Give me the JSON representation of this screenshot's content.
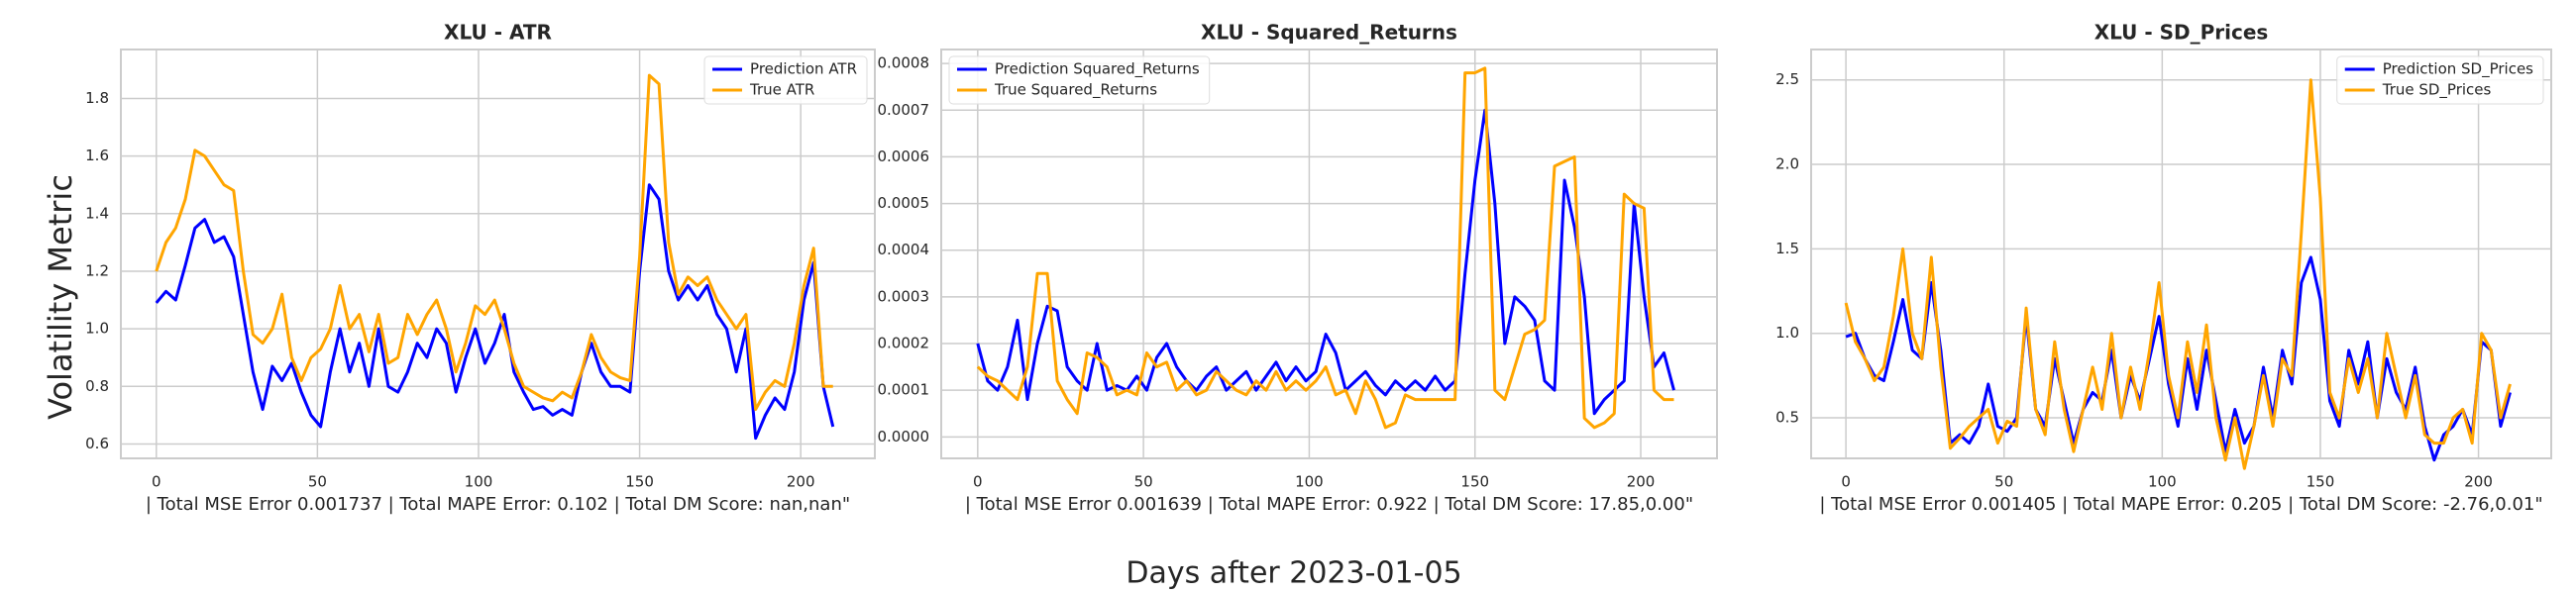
{
  "supylabel": "Volatility Metric",
  "supxlabel": "Days after 2023-01-05",
  "chart_data": [
    {
      "type": "line",
      "title": "XLU - ATR",
      "xlabel": "| Total MSE Error 0.001737 | Total MAPE Error: 0.102 | Total DM Score: nan,nan\"",
      "x": [
        0,
        3,
        6,
        9,
        12,
        15,
        18,
        21,
        24,
        27,
        30,
        33,
        36,
        39,
        42,
        45,
        48,
        51,
        54,
        57,
        60,
        63,
        66,
        69,
        72,
        75,
        78,
        81,
        84,
        87,
        90,
        93,
        96,
        99,
        102,
        105,
        108,
        111,
        114,
        117,
        120,
        123,
        126,
        129,
        132,
        135,
        138,
        141,
        144,
        147,
        150,
        153,
        156,
        159,
        162,
        165,
        168,
        171,
        174,
        177,
        180,
        183,
        186,
        189,
        192,
        195,
        198,
        201,
        204,
        207,
        210
      ],
      "series": [
        {
          "name": "Prediction ATR",
          "color": "#0000ff",
          "values": [
            1.09,
            1.13,
            1.1,
            1.22,
            1.35,
            1.38,
            1.3,
            1.32,
            1.25,
            1.05,
            0.85,
            0.72,
            0.87,
            0.82,
            0.88,
            0.78,
            0.7,
            0.66,
            0.85,
            1.0,
            0.85,
            0.95,
            0.8,
            1.0,
            0.8,
            0.78,
            0.85,
            0.95,
            0.9,
            1.0,
            0.95,
            0.78,
            0.9,
            1.0,
            0.88,
            0.95,
            1.05,
            0.85,
            0.78,
            0.72,
            0.73,
            0.7,
            0.72,
            0.7,
            0.85,
            0.95,
            0.85,
            0.8,
            0.8,
            0.78,
            1.2,
            1.5,
            1.45,
            1.2,
            1.1,
            1.15,
            1.1,
            1.15,
            1.05,
            1.0,
            0.85,
            1.0,
            0.62,
            0.7,
            0.76,
            0.72,
            0.85,
            1.1,
            1.23,
            0.8,
            0.66
          ]
        },
        {
          "name": "True ATR",
          "color": "#ffa500",
          "values": [
            1.2,
            1.3,
            1.35,
            1.45,
            1.62,
            1.6,
            1.55,
            1.5,
            1.48,
            1.2,
            0.98,
            0.95,
            1.0,
            1.12,
            0.9,
            0.82,
            0.9,
            0.93,
            1.0,
            1.15,
            1.0,
            1.05,
            0.92,
            1.05,
            0.88,
            0.9,
            1.05,
            0.98,
            1.05,
            1.1,
            1.0,
            0.85,
            0.95,
            1.08,
            1.05,
            1.1,
            1.0,
            0.88,
            0.8,
            0.78,
            0.76,
            0.75,
            0.78,
            0.76,
            0.85,
            0.98,
            0.9,
            0.85,
            0.83,
            0.82,
            1.25,
            1.88,
            1.85,
            1.3,
            1.12,
            1.18,
            1.15,
            1.18,
            1.1,
            1.05,
            1.0,
            1.05,
            0.72,
            0.78,
            0.82,
            0.8,
            0.95,
            1.15,
            1.28,
            0.8,
            0.8
          ]
        }
      ],
      "xlim": [
        -11,
        223
      ],
      "xticks": [
        0,
        50,
        100,
        150,
        200
      ],
      "ylim": [
        0.55,
        1.97
      ],
      "yticks": [
        0.6,
        0.8,
        {
          "value": 1,
          "label": "1.0"
        },
        1.2,
        1.4,
        1.6,
        1.8
      ],
      "grid": true,
      "legend": "upper right"
    },
    {
      "type": "line",
      "title": "XLU - Squared_Returns",
      "xlabel": "| Total MSE Error 0.001639 | Total MAPE Error: 0.922 | Total DM Score: 17.85,0.00\"",
      "x": [
        0,
        3,
        6,
        9,
        12,
        15,
        18,
        21,
        24,
        27,
        30,
        33,
        36,
        39,
        42,
        45,
        48,
        51,
        54,
        57,
        60,
        63,
        66,
        69,
        72,
        75,
        78,
        81,
        84,
        87,
        90,
        93,
        96,
        99,
        102,
        105,
        108,
        111,
        114,
        117,
        120,
        123,
        126,
        129,
        132,
        135,
        138,
        141,
        144,
        147,
        150,
        153,
        156,
        159,
        162,
        165,
        168,
        171,
        174,
        177,
        180,
        183,
        186,
        189,
        192,
        195,
        198,
        201,
        204,
        207,
        210
      ],
      "series": [
        {
          "name": "Prediction Squared_Returns",
          "color": "#0000ff",
          "values": [
            0.0002,
            0.00012,
            0.0001,
            0.00015,
            0.00025,
            8e-05,
            0.0002,
            0.00028,
            0.00027,
            0.00015,
            0.00012,
            0.0001,
            0.0002,
            0.0001,
            0.00011,
            0.0001,
            0.00013,
            0.0001,
            0.00017,
            0.0002,
            0.00015,
            0.00012,
            0.0001,
            0.00013,
            0.00015,
            0.0001,
            0.00012,
            0.00014,
            0.0001,
            0.00013,
            0.00016,
            0.00012,
            0.00015,
            0.00012,
            0.00014,
            0.00022,
            0.00018,
            0.0001,
            0.00012,
            0.00014,
            0.00011,
            9e-05,
            0.00012,
            0.0001,
            0.00012,
            0.0001,
            0.00013,
            0.0001,
            0.00012,
            0.00035,
            0.00055,
            0.0007,
            0.0005,
            0.0002,
            0.0003,
            0.00028,
            0.00025,
            0.00012,
            0.0001,
            0.00055,
            0.00045,
            0.0003,
            5e-05,
            8e-05,
            0.0001,
            0.00012,
            0.0005,
            0.0003,
            0.00015,
            0.00018,
            0.0001
          ]
        },
        {
          "name": "True Squared_Returns",
          "color": "#ffa500",
          "values": [
            0.00015,
            0.00013,
            0.00012,
            0.0001,
            8e-05,
            0.00015,
            0.00035,
            0.00035,
            0.00012,
            8e-05,
            5e-05,
            0.00018,
            0.00017,
            0.00015,
            9e-05,
            0.0001,
            9e-05,
            0.00018,
            0.00015,
            0.00016,
            0.0001,
            0.00012,
            9e-05,
            0.0001,
            0.00014,
            0.00012,
            0.0001,
            9e-05,
            0.00012,
            0.0001,
            0.00014,
            0.0001,
            0.00012,
            0.0001,
            0.00012,
            0.00015,
            9e-05,
            0.0001,
            5e-05,
            0.00012,
            8e-05,
            2e-05,
            3e-05,
            9e-05,
            8e-05,
            8e-05,
            8e-05,
            8e-05,
            8e-05,
            0.00078,
            0.00078,
            0.00079,
            0.0001,
            8e-05,
            0.00015,
            0.00022,
            0.00023,
            0.00025,
            0.00058,
            0.00059,
            0.0006,
            4e-05,
            2e-05,
            3e-05,
            5e-05,
            0.00052,
            0.0005,
            0.00049,
            0.0001,
            8e-05,
            8e-05
          ]
        }
      ],
      "xlim": [
        -11,
        223
      ],
      "xticks": [
        0,
        50,
        100,
        150,
        200
      ],
      "ylim": [
        -4.6e-05,
        0.00083
      ],
      "yticks": [
        {
          "value": 0,
          "label": "0.0000"
        },
        {
          "value": 0.0001,
          "label": "0.0001"
        },
        {
          "value": 0.0002,
          "label": "0.0002"
        },
        {
          "value": 0.0003,
          "label": "0.0003"
        },
        {
          "value": 0.0004,
          "label": "0.0004"
        },
        {
          "value": 0.0005,
          "label": "0.0005"
        },
        {
          "value": 0.0006,
          "label": "0.0006"
        },
        {
          "value": 0.0007,
          "label": "0.0007"
        },
        {
          "value": 0.0008,
          "label": "0.0008"
        }
      ],
      "grid": true,
      "legend": "upper left"
    },
    {
      "type": "line",
      "title": "XLU - SD_Prices",
      "xlabel": "| Total MSE Error 0.001405 | Total MAPE Error: 0.205 | Total DM Score: -2.76,0.01\"",
      "x": [
        0,
        3,
        6,
        9,
        12,
        15,
        18,
        21,
        24,
        27,
        30,
        33,
        36,
        39,
        42,
        45,
        48,
        51,
        54,
        57,
        60,
        63,
        66,
        69,
        72,
        75,
        78,
        81,
        84,
        87,
        90,
        93,
        96,
        99,
        102,
        105,
        108,
        111,
        114,
        117,
        120,
        123,
        126,
        129,
        132,
        135,
        138,
        141,
        144,
        147,
        150,
        153,
        156,
        159,
        162,
        165,
        168,
        171,
        174,
        177,
        180,
        183,
        186,
        189,
        192,
        195,
        198,
        201,
        204,
        207,
        210
      ],
      "series": [
        {
          "name": "Prediction SD_Prices",
          "color": "#0000ff",
          "values": [
            0.98,
            1.0,
            0.85,
            0.75,
            0.72,
            0.95,
            1.2,
            0.9,
            0.85,
            1.3,
            0.9,
            0.35,
            0.4,
            0.35,
            0.45,
            0.7,
            0.45,
            0.42,
            0.5,
            1.1,
            0.55,
            0.45,
            0.85,
            0.6,
            0.35,
            0.55,
            0.65,
            0.6,
            0.9,
            0.5,
            0.75,
            0.6,
            0.85,
            1.1,
            0.7,
            0.45,
            0.85,
            0.55,
            0.9,
            0.6,
            0.3,
            0.55,
            0.35,
            0.45,
            0.8,
            0.5,
            0.9,
            0.7,
            1.3,
            1.45,
            1.2,
            0.6,
            0.45,
            0.9,
            0.7,
            0.95,
            0.5,
            0.85,
            0.65,
            0.55,
            0.8,
            0.45,
            0.25,
            0.4,
            0.45,
            0.55,
            0.4,
            0.95,
            0.9,
            0.45,
            0.65
          ]
        },
        {
          "name": "True SD_Prices",
          "color": "#ffa500",
          "values": [
            1.18,
            0.95,
            0.85,
            0.72,
            0.8,
            1.1,
            1.5,
            1.0,
            0.85,
            1.45,
            0.8,
            0.32,
            0.38,
            0.45,
            0.5,
            0.55,
            0.35,
            0.48,
            0.45,
            1.15,
            0.55,
            0.4,
            0.95,
            0.55,
            0.3,
            0.55,
            0.8,
            0.55,
            1.0,
            0.5,
            0.8,
            0.55,
            0.9,
            1.3,
            0.75,
            0.5,
            0.95,
            0.65,
            1.05,
            0.5,
            0.25,
            0.5,
            0.2,
            0.45,
            0.75,
            0.45,
            0.85,
            0.75,
            1.6,
            2.5,
            1.8,
            0.65,
            0.5,
            0.85,
            0.65,
            0.85,
            0.5,
            1.0,
            0.75,
            0.5,
            0.75,
            0.4,
            0.35,
            0.35,
            0.5,
            0.55,
            0.35,
            1.0,
            0.9,
            0.5,
            0.7
          ]
        }
      ],
      "xlim": [
        -11,
        223
      ],
      "xticks": [
        0,
        50,
        100,
        150,
        200
      ],
      "ylim": [
        0.26,
        2.68
      ],
      "yticks": [
        0.5,
        {
          "value": 1,
          "label": "1.0"
        },
        1.5,
        {
          "value": 2,
          "label": "2.0"
        },
        2.5
      ],
      "grid": true,
      "legend": "upper right"
    }
  ]
}
